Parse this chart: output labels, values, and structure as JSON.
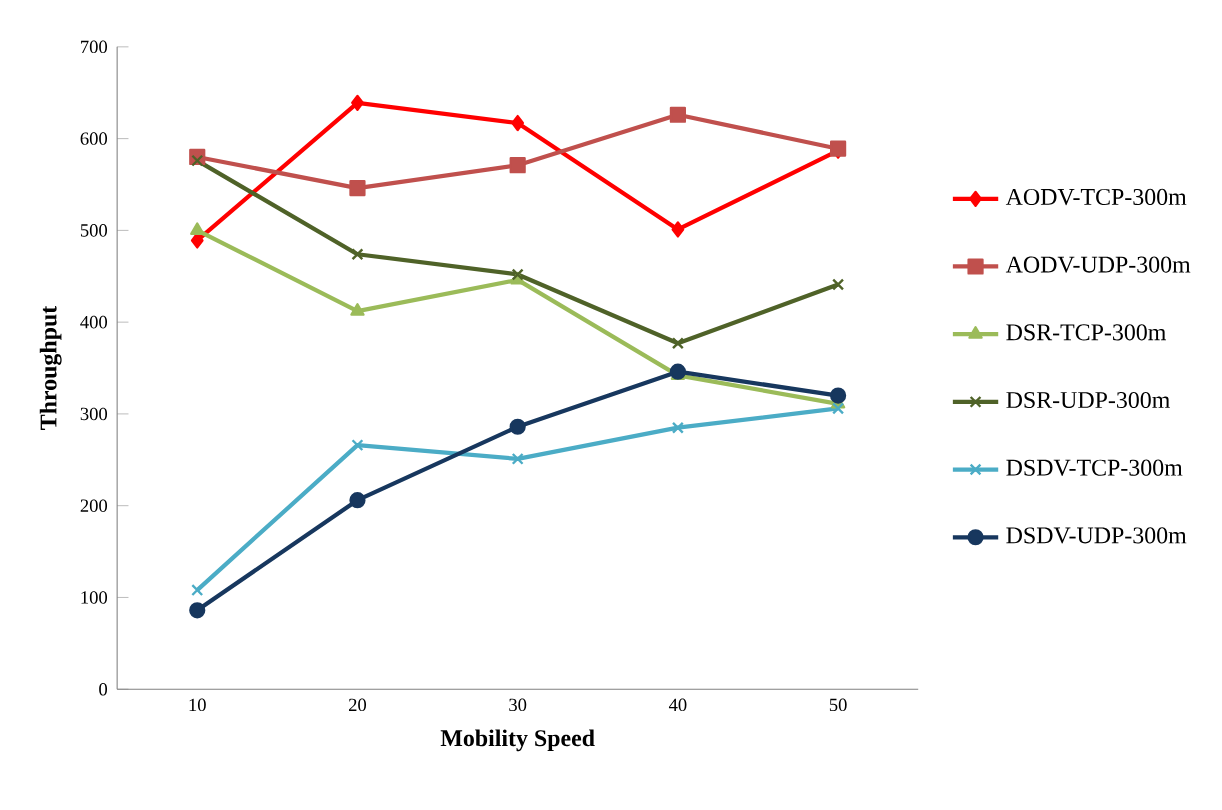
{
  "chart_data": {
    "type": "line",
    "xlabel": "Mobility Speed",
    "ylabel": "Throughput",
    "categories": [
      "10",
      "20",
      "30",
      "40",
      "50"
    ],
    "ylim": [
      0,
      700
    ],
    "yticks": [
      0,
      100,
      200,
      300,
      400,
      500,
      600,
      700
    ],
    "grid": false,
    "legend": "right",
    "line_style": "solid",
    "series": [
      {
        "name": "AODV-TCP-300m",
        "color": "#ff0000",
        "marker": "diamond",
        "values": [
          489,
          639,
          617,
          501,
          587
        ]
      },
      {
        "name": "AODV-UDP-300m",
        "color": "#c0504d",
        "marker": "square",
        "values": [
          580,
          546,
          571,
          626,
          589
        ]
      },
      {
        "name": "DSR-TCP-300m",
        "color": "#9bbb59",
        "marker": "triangle",
        "values": [
          500,
          412,
          446,
          342,
          311
        ]
      },
      {
        "name": "DSR-UDP-300m",
        "color": "#4f6228",
        "marker": "cross",
        "values": [
          576,
          474,
          452,
          377,
          441
        ]
      },
      {
        "name": "DSDV-TCP-300m",
        "color": "#4bacc6",
        "marker": "cross",
        "values": [
          108,
          266,
          251,
          285,
          306
        ]
      },
      {
        "name": "DSDV-UDP-300m",
        "color": "#17375e",
        "marker": "circle",
        "values": [
          86,
          206,
          286,
          346,
          320
        ]
      }
    ]
  }
}
